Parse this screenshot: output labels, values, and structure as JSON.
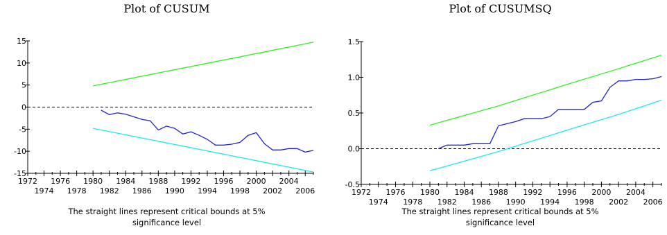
{
  "colors": {
    "upper": "#33ee22",
    "lower": "#22e6ee",
    "stat": "#2222cc",
    "zero": "#000000"
  },
  "charts": [
    {
      "title": "Plot of CUSUM",
      "caption_line1": "The straight lines represent critical bounds at 5%",
      "caption_line2": "significance level"
    },
    {
      "title": "Plot of CUSUMSQ",
      "caption_line1": "The straight lines represent critical bounds at 5%",
      "caption_line2": "significance level"
    }
  ],
  "chart_data": [
    {
      "type": "line",
      "title": "Plot of CUSUM",
      "xlim": [
        1972,
        2007
      ],
      "ylim": [
        -15,
        15
      ],
      "yticks": [
        "15",
        "10",
        "5",
        "0",
        "-5",
        "-10",
        "-15"
      ],
      "ytick_values": [
        15,
        10,
        5,
        0,
        -5,
        -10,
        -15
      ],
      "xticks_top": [
        "1972",
        "1976",
        "1980",
        "1984",
        "1988",
        "1992",
        "1996",
        "2000",
        "2004"
      ],
      "xticks_bottom": [
        "1974",
        "1978",
        "1982",
        "1986",
        "1990",
        "1994",
        "1998",
        "2002",
        "2006"
      ],
      "reference_line": 0,
      "series": [
        {
          "role": "upper",
          "points": [
            [
              1980,
              4.8
            ],
            [
              2007,
              14.7
            ]
          ]
        },
        {
          "role": "lower",
          "points": [
            [
              1980,
              -4.8
            ],
            [
              2007,
              -14.7
            ]
          ]
        },
        {
          "role": "stat",
          "points": [
            [
              1981,
              -0.7
            ],
            [
              1982,
              -1.7
            ],
            [
              1983,
              -1.3
            ],
            [
              1984,
              -1.6
            ],
            [
              1985,
              -2.2
            ],
            [
              1986,
              -2.8
            ],
            [
              1987,
              -3.1
            ],
            [
              1988,
              -5.2
            ],
            [
              1989,
              -4.3
            ],
            [
              1990,
              -4.8
            ],
            [
              1991,
              -6.1
            ],
            [
              1992,
              -5.6
            ],
            [
              1993,
              -6.4
            ],
            [
              1994,
              -7.3
            ],
            [
              1995,
              -8.6
            ],
            [
              1996,
              -8.6
            ],
            [
              1997,
              -8.4
            ],
            [
              1998,
              -8.0
            ],
            [
              1999,
              -6.4
            ],
            [
              2000,
              -5.8
            ],
            [
              2001,
              -8.3
            ],
            [
              2002,
              -9.7
            ],
            [
              2003,
              -9.7
            ],
            [
              2004,
              -9.4
            ],
            [
              2005,
              -9.4
            ],
            [
              2006,
              -10.2
            ],
            [
              2007,
              -9.8
            ]
          ]
        }
      ]
    },
    {
      "type": "line",
      "title": "Plot of CUSUMSQ",
      "xlim": [
        1972,
        2007
      ],
      "ylim": [
        -0.5,
        1.5
      ],
      "yticks": [
        "1.5",
        "1.0",
        "0.5",
        "0.0",
        "-0.5"
      ],
      "ytick_values": [
        1.5,
        1.0,
        0.5,
        0.0,
        -0.5
      ],
      "xticks_top": [
        "1972",
        "1976",
        "1980",
        "1984",
        "1988",
        "1992",
        "1996",
        "2000",
        "2004"
      ],
      "xticks_bottom": [
        "1974",
        "1978",
        "1982",
        "1986",
        "1990",
        "1994",
        "1998",
        "2002",
        "2006"
      ],
      "reference_line": 0,
      "series": [
        {
          "role": "upper",
          "points": [
            [
              1980,
              0.33
            ],
            [
              1988,
              0.6
            ],
            [
              1996,
              0.9
            ],
            [
              2002,
              1.12
            ],
            [
              2007,
              1.31
            ]
          ]
        },
        {
          "role": "lower",
          "points": [
            [
              1980,
              -0.31
            ],
            [
              1988,
              -0.04
            ],
            [
              1996,
              0.26
            ],
            [
              2002,
              0.48
            ],
            [
              2007,
              0.68
            ]
          ]
        },
        {
          "role": "stat",
          "points": [
            [
              1981,
              0.0
            ],
            [
              1982,
              0.05
            ],
            [
              1983,
              0.05
            ],
            [
              1984,
              0.05
            ],
            [
              1985,
              0.07
            ],
            [
              1986,
              0.07
            ],
            [
              1987,
              0.07
            ],
            [
              1988,
              0.32
            ],
            [
              1989,
              0.35
            ],
            [
              1990,
              0.38
            ],
            [
              1991,
              0.42
            ],
            [
              1992,
              0.42
            ],
            [
              1993,
              0.42
            ],
            [
              1994,
              0.45
            ],
            [
              1995,
              0.55
            ],
            [
              1996,
              0.55
            ],
            [
              1997,
              0.55
            ],
            [
              1998,
              0.55
            ],
            [
              1999,
              0.65
            ],
            [
              2000,
              0.67
            ],
            [
              2001,
              0.86
            ],
            [
              2002,
              0.95
            ],
            [
              2003,
              0.95
            ],
            [
              2004,
              0.97
            ],
            [
              2005,
              0.97
            ],
            [
              2006,
              0.98
            ],
            [
              2007,
              1.01
            ]
          ]
        }
      ]
    }
  ]
}
